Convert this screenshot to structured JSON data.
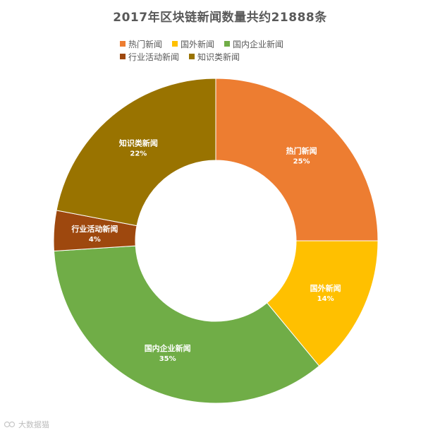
{
  "chart_data": {
    "type": "pie",
    "variant": "donut",
    "title": "2017年区块链新闻数量共约21888条",
    "legend_position": "top",
    "series": [
      {
        "name": "热门新闻",
        "value": 25,
        "label": "25%",
        "color": "#ED7D31"
      },
      {
        "name": "国外新闻",
        "value": 14,
        "label": "14%",
        "color": "#FFC000"
      },
      {
        "name": "国内企业新闻",
        "value": 35,
        "label": "35%",
        "color": "#70AD47"
      },
      {
        "name": "行业活动新闻",
        "value": 4,
        "label": "4%",
        "color": "#9E480E"
      },
      {
        "name": "知识类新闻",
        "value": 22,
        "label": "22%",
        "color": "#997300"
      }
    ]
  },
  "watermark": {
    "text": "大数据猫"
  }
}
